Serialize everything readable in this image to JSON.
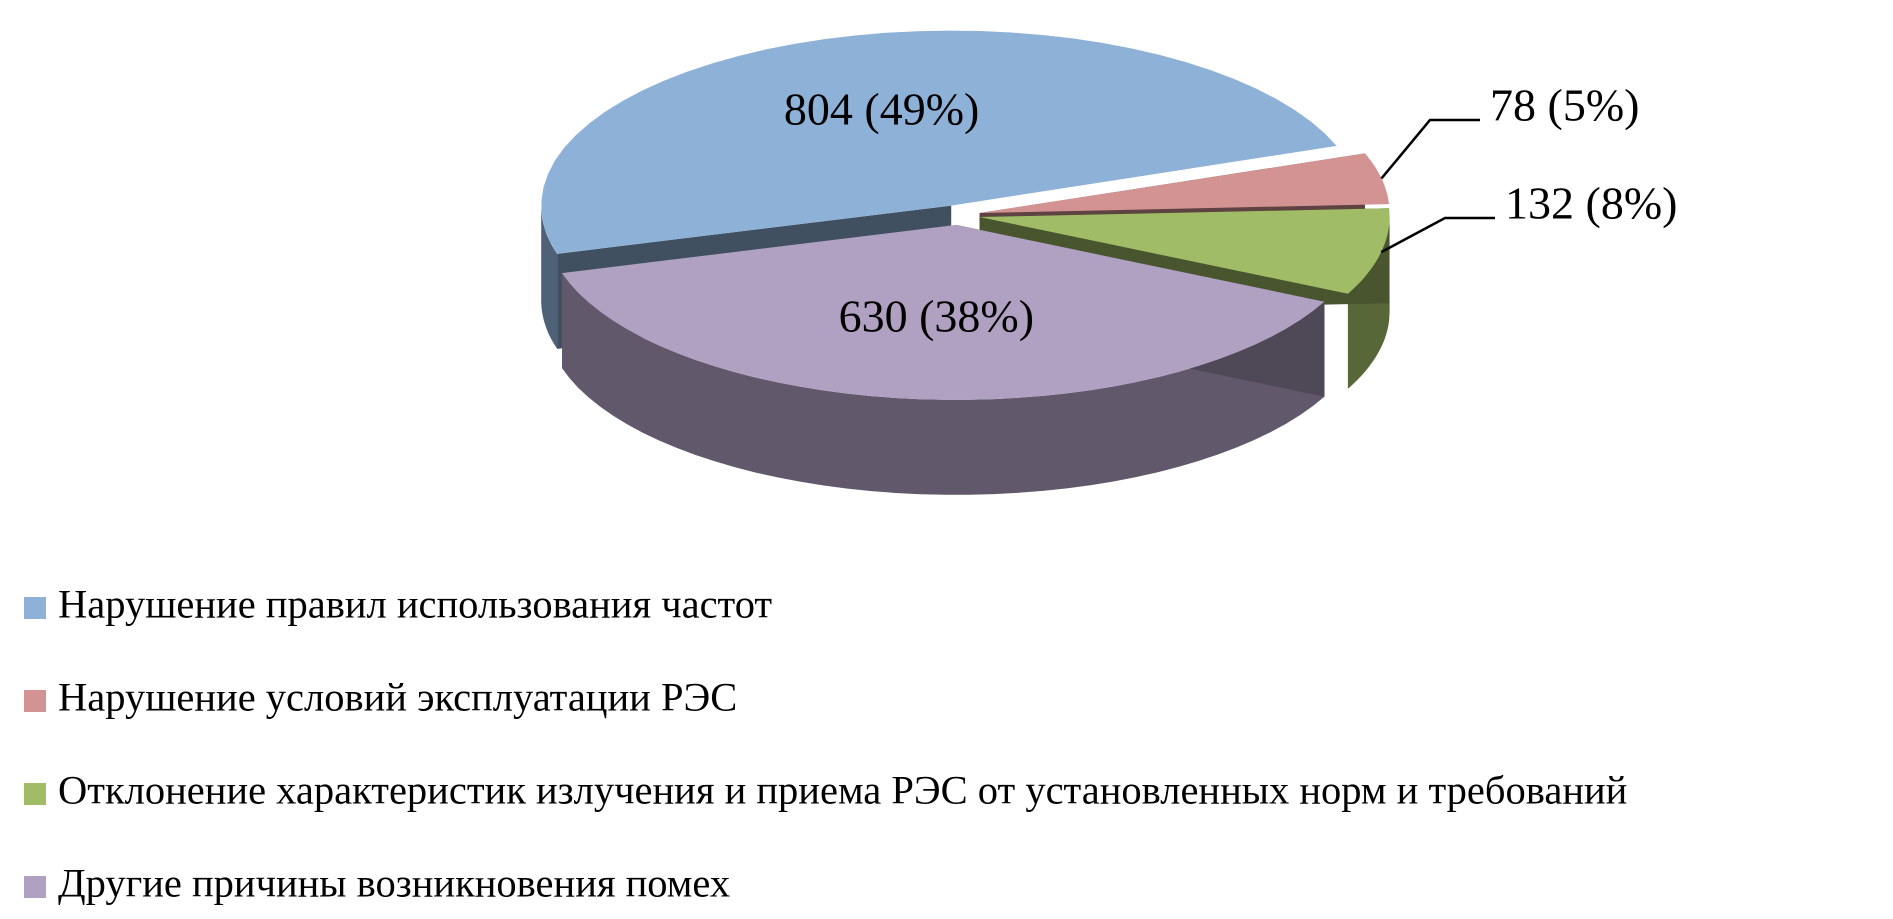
{
  "chart_data": {
    "type": "pie",
    "categories": [
      "Нарушение правил использования частот",
      "Нарушение условий эксплуатации РЭС",
      "Отклонение характеристик излучения и приема РЭС от установленных норм и требований",
      "Другие причины возникновения помех"
    ],
    "values": [
      804,
      78,
      132,
      630
    ],
    "value_labels": [
      "804 (49%)",
      "78 (5%)",
      "132 (8%)",
      "630 (38%)"
    ],
    "colors": [
      "#8eb1d8",
      "#d49393",
      "#a0bc66",
      "#b0a1c2"
    ],
    "legend": "bottom"
  }
}
